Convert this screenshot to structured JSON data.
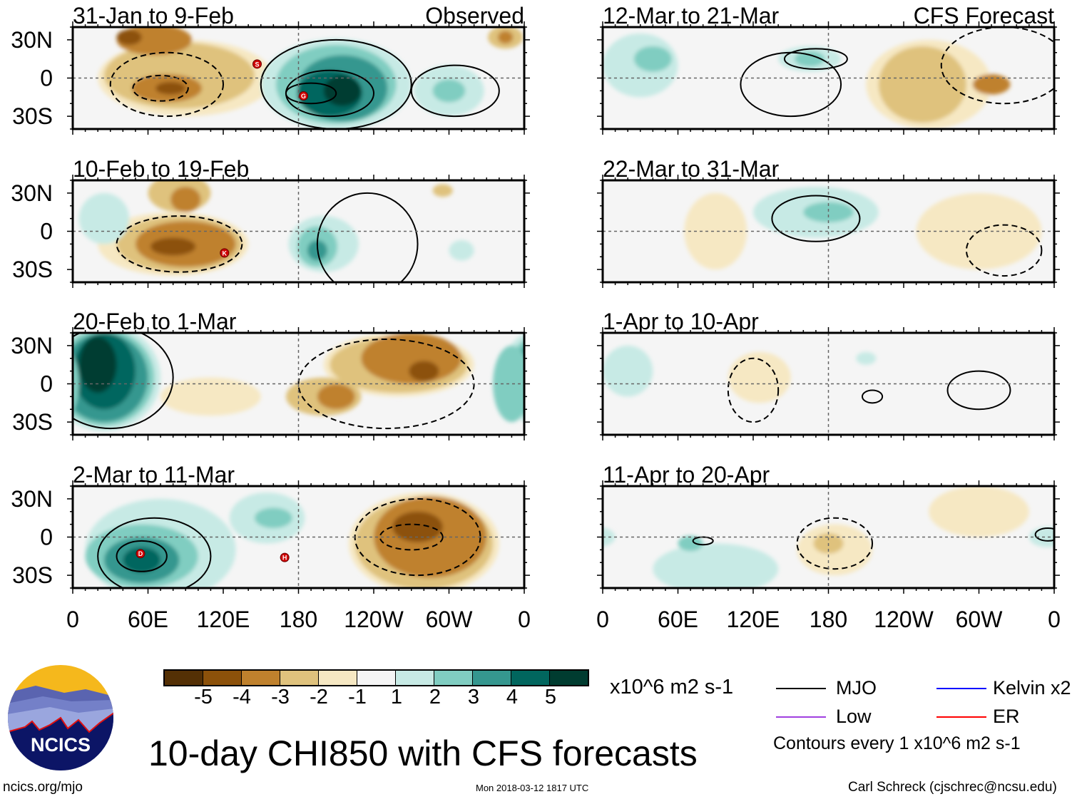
{
  "chart_data": {
    "type": "heatmap",
    "title": "10-day CHI850 with CFS forecasts",
    "units": "x10^6 m2 s-1",
    "column_labels": [
      "Observed",
      "CFS Forecast"
    ],
    "lat_ticks": [
      "30N",
      "0",
      "30S"
    ],
    "lon_ticks": [
      "0",
      "60E",
      "120E",
      "180",
      "120W",
      "60W",
      "0"
    ],
    "lat_range": [
      -40,
      40
    ],
    "lon_range": [
      0,
      360
    ],
    "colorbar": {
      "labels": [
        "-5",
        "-4",
        "-3",
        "-2",
        "-1",
        "1",
        "2",
        "3",
        "4",
        "5"
      ],
      "levels": [
        -6,
        -5,
        -4,
        -3,
        -2,
        -1,
        1,
        2,
        3,
        4,
        5,
        6
      ],
      "colors": [
        "#543005",
        "#8c510a",
        "#bf812d",
        "#dfc27d",
        "#f6e8c3",
        "#f5f5f5",
        "#c7eae5",
        "#80cdc1",
        "#35978f",
        "#01665e",
        "#003c30"
      ]
    },
    "anomaly_colors": {
      "-5": "#543005",
      "-4": "#8c510a",
      "-3": "#bf812d",
      "-2": "#dfc27d",
      "-1": "#f6e8c3",
      "1": "#c7eae5",
      "2": "#80cdc1",
      "3": "#35978f",
      "4": "#01665e",
      "5": "#003c30"
    },
    "panels": [
      {
        "title": "31-Jan to 9-Feb",
        "label": "Observed",
        "column": 0,
        "row": 0,
        "anomalies": [
          [
            90,
            0,
            70,
            30,
            -1
          ],
          [
            85,
            2,
            60,
            26,
            -2
          ],
          [
            65,
            30,
            30,
            12,
            -3
          ],
          [
            75,
            -8,
            28,
            11,
            -3
          ],
          [
            78,
            -8,
            12,
            5,
            -4
          ],
          [
            45,
            32,
            10,
            6,
            -4
          ],
          [
            210,
            -5,
            60,
            36,
            1
          ],
          [
            210,
            -5,
            48,
            31,
            2
          ],
          [
            215,
            -8,
            36,
            26,
            3
          ],
          [
            205,
            -12,
            26,
            18,
            4
          ],
          [
            215,
            -10,
            15,
            12,
            5
          ],
          [
            300,
            -10,
            28,
            20,
            1
          ],
          [
            300,
            -10,
            13,
            9,
            2
          ],
          [
            345,
            32,
            14,
            9,
            -2
          ],
          [
            345,
            32,
            6,
            5,
            -3
          ]
        ],
        "mjo_positive": [
          [
            210,
            -5,
            60,
            35
          ],
          [
            205,
            -12,
            35,
            18
          ],
          [
            190,
            -12,
            20,
            8
          ],
          [
            305,
            -10,
            35,
            20
          ]
        ],
        "mjo_negative": [
          [
            75,
            -5,
            45,
            25
          ],
          [
            70,
            -8,
            22,
            10
          ]
        ],
        "storms": [
          {
            "id": "S",
            "lon": 147,
            "lat": 11
          },
          {
            "id": "G",
            "lon": 184,
            "lat": -14
          }
        ]
      },
      {
        "title": "10-Feb to 19-Feb",
        "column": 0,
        "row": 1,
        "anomalies": [
          [
            80,
            -10,
            60,
            25,
            -1
          ],
          [
            85,
            -10,
            50,
            22,
            -2
          ],
          [
            90,
            -10,
            40,
            18,
            -3
          ],
          [
            80,
            -12,
            18,
            7,
            -4
          ],
          [
            85,
            30,
            25,
            15,
            -2
          ],
          [
            90,
            25,
            12,
            10,
            -3
          ],
          [
            200,
            -10,
            28,
            22,
            1
          ],
          [
            195,
            -12,
            16,
            16,
            2
          ],
          [
            195,
            -15,
            8,
            8,
            3
          ],
          [
            25,
            10,
            20,
            20,
            1
          ],
          [
            310,
            -15,
            10,
            8,
            1
          ],
          [
            295,
            32,
            8,
            5,
            -2
          ]
        ],
        "mjo_positive": [
          [
            235,
            -10,
            40,
            40
          ]
        ],
        "mjo_negative": [
          [
            85,
            -10,
            50,
            22
          ]
        ],
        "storms": [
          {
            "id": "K",
            "lon": 121,
            "lat": -17
          }
        ]
      },
      {
        "title": "20-Feb to 1-Mar",
        "column": 0,
        "row": 2,
        "anomalies": [
          [
            25,
            5,
            45,
            42,
            1
          ],
          [
            25,
            5,
            40,
            38,
            2
          ],
          [
            25,
            5,
            35,
            35,
            3
          ],
          [
            25,
            10,
            25,
            30,
            4
          ],
          [
            20,
            15,
            15,
            22,
            5
          ],
          [
            350,
            0,
            15,
            30,
            2
          ],
          [
            260,
            15,
            60,
            25,
            -1
          ],
          [
            260,
            15,
            55,
            22,
            -2
          ],
          [
            270,
            20,
            40,
            20,
            -3
          ],
          [
            280,
            10,
            12,
            8,
            -4
          ],
          [
            200,
            -10,
            30,
            15,
            -2
          ],
          [
            210,
            -10,
            15,
            10,
            -3
          ],
          [
            110,
            -10,
            40,
            15,
            -1
          ]
        ],
        "mjo_positive": [
          [
            30,
            5,
            50,
            40
          ]
        ],
        "mjo_negative": [
          [
            250,
            0,
            70,
            35
          ]
        ],
        "storms": []
      },
      {
        "title": "2-Mar to 11-Mar",
        "column": 0,
        "row": 3,
        "anomalies": [
          [
            70,
            -10,
            60,
            40,
            1
          ],
          [
            55,
            -15,
            45,
            25,
            2
          ],
          [
            55,
            -18,
            30,
            18,
            3
          ],
          [
            55,
            -18,
            15,
            10,
            4
          ],
          [
            155,
            15,
            30,
            20,
            1
          ],
          [
            160,
            15,
            15,
            8,
            2
          ],
          [
            280,
            -5,
            60,
            40,
            -1
          ],
          [
            280,
            -5,
            55,
            36,
            -2
          ],
          [
            285,
            0,
            45,
            32,
            -3
          ],
          [
            275,
            8,
            20,
            12,
            -4
          ]
        ],
        "mjo_positive": [
          [
            65,
            -15,
            45,
            30
          ],
          [
            55,
            -15,
            20,
            12
          ]
        ],
        "mjo_negative": [
          [
            275,
            0,
            50,
            30
          ],
          [
            270,
            0,
            25,
            10
          ]
        ],
        "storms": [
          {
            "id": "D",
            "lon": 54,
            "lat": -13
          },
          {
            "id": "H",
            "lon": 169,
            "lat": -16
          }
        ]
      },
      {
        "title": "12-Mar to 21-Mar",
        "label": "CFS Forecast",
        "column": 1,
        "row": 0,
        "anomalies": [
          [
            30,
            10,
            30,
            25,
            1
          ],
          [
            40,
            15,
            15,
            10,
            2
          ],
          [
            165,
            15,
            25,
            10,
            1
          ],
          [
            165,
            15,
            12,
            6,
            2
          ],
          [
            260,
            -5,
            50,
            35,
            -1
          ],
          [
            255,
            -5,
            35,
            30,
            -2
          ],
          [
            310,
            -5,
            15,
            8,
            -3
          ]
        ],
        "mjo_positive": [
          [
            150,
            -5,
            40,
            25
          ],
          [
            170,
            15,
            25,
            8
          ]
        ],
        "mjo_negative": [
          [
            320,
            10,
            50,
            30
          ]
        ],
        "storms": []
      },
      {
        "title": "22-Mar to 31-Mar",
        "column": 1,
        "row": 1,
        "anomalies": [
          [
            170,
            15,
            50,
            20,
            1
          ],
          [
            180,
            15,
            20,
            8,
            2
          ],
          [
            90,
            0,
            25,
            30,
            -1
          ],
          [
            300,
            0,
            50,
            30,
            -1
          ]
        ],
        "mjo_positive": [
          [
            170,
            10,
            35,
            18
          ]
        ],
        "mjo_negative": [
          [
            320,
            -15,
            30,
            20
          ]
        ],
        "storms": []
      },
      {
        "title": "1-Apr to 10-Apr",
        "column": 1,
        "row": 2,
        "anomalies": [
          [
            125,
            5,
            25,
            20,
            -1
          ],
          [
            20,
            10,
            20,
            20,
            1
          ],
          [
            210,
            20,
            8,
            5,
            1
          ]
        ],
        "mjo_positive": [
          [
            215,
            -10,
            8,
            5
          ],
          [
            300,
            -5,
            25,
            15
          ]
        ],
        "mjo_negative": [
          [
            120,
            -5,
            20,
            25
          ]
        ],
        "storms": []
      },
      {
        "title": "11-Apr to 20-Apr",
        "column": 1,
        "row": 3,
        "anomalies": [
          [
            185,
            -10,
            30,
            20,
            -1
          ],
          [
            180,
            -5,
            12,
            8,
            -2
          ],
          [
            90,
            -25,
            50,
            20,
            1
          ],
          [
            70,
            -5,
            10,
            6,
            2
          ],
          [
            355,
            0,
            15,
            8,
            1
          ],
          [
            300,
            20,
            40,
            20,
            -1
          ]
        ],
        "mjo_positive": [
          [
            80,
            -3,
            8,
            3
          ],
          [
            355,
            2,
            10,
            5
          ]
        ],
        "mjo_negative": [
          [
            185,
            -5,
            30,
            20
          ]
        ],
        "storms": []
      }
    ],
    "legend": {
      "items": [
        {
          "label": "MJO",
          "color": "#000000"
        },
        {
          "label": "Kelvin x2",
          "color": "#0000ff"
        },
        {
          "label": "Low",
          "color": "#a040e0"
        },
        {
          "label": "ER",
          "color": "#ff0000"
        }
      ],
      "note": "Contours every 1 x10^6 m2 s-1",
      "placement": "bottom-right"
    }
  },
  "footer": {
    "logo_text": "NCICS",
    "site": "ncics.org/mjo",
    "timestamp": "Mon 2018-03-12 1817 UTC",
    "credit": "Carl Schreck (cjschrec@ncsu.edu)"
  }
}
